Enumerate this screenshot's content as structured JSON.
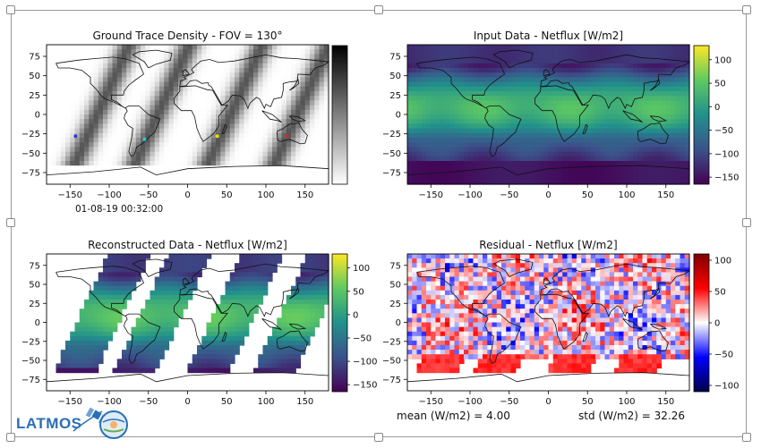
{
  "timestamp": "01-08-19 00:32:00",
  "logos": {
    "latmos": "LATMOS"
  },
  "footer": {
    "mean_label": "mean (W/m2) = 4.00",
    "std_label": "std (W/m2) = 32.26"
  },
  "chart_data": [
    {
      "type": "heatmap",
      "title": "Ground Trace Density - FOV = 130°",
      "x_ticks": [
        -150,
        -100,
        -50,
        0,
        50,
        100,
        150
      ],
      "y_ticks": [
        75,
        50,
        25,
        0,
        -25,
        -50,
        -75
      ],
      "xlim": [
        -180,
        180
      ],
      "ylim": [
        -90,
        90
      ],
      "colormap": "gray_r",
      "colorbar_ticks": [],
      "swath_centers_lon_at_equator": [
        -115,
        -38,
        55,
        140
      ],
      "markers": [
        {
          "lon": -143,
          "lat": -28,
          "color": "#1f3fd0"
        },
        {
          "lon": -55,
          "lat": -32,
          "color": "#2ec4d8"
        },
        {
          "lon": 38,
          "lat": -28,
          "color": "#e8e000"
        },
        {
          "lon": 127,
          "lat": -28,
          "color": "#d02a2a"
        }
      ]
    },
    {
      "type": "heatmap",
      "title": "Input Data - Netflux [W/m2]",
      "x_ticks": [
        -150,
        -100,
        -50,
        0,
        50,
        100,
        150
      ],
      "y_ticks": [
        75,
        50,
        25,
        0,
        -25,
        -50,
        -75
      ],
      "xlim": [
        -180,
        180
      ],
      "ylim": [
        -90,
        90
      ],
      "colormap": "viridis",
      "colorbar_ticks": [
        100,
        50,
        0,
        -50,
        -100,
        -150
      ],
      "colorbar_range": [
        -165,
        130
      ]
    },
    {
      "type": "heatmap",
      "title": "Reconstructed Data - Netflux [W/m2]",
      "x_ticks": [
        -150,
        -100,
        -50,
        0,
        50,
        100,
        150
      ],
      "y_ticks": [
        75,
        50,
        25,
        0,
        -25,
        -50,
        -75
      ],
      "xlim": [
        -180,
        180
      ],
      "ylim": [
        -90,
        90
      ],
      "colormap": "viridis",
      "colorbar_ticks": [
        100,
        50,
        0,
        -50,
        -100,
        -150
      ],
      "colorbar_range": [
        -165,
        130
      ]
    },
    {
      "type": "heatmap",
      "title": "Residual - Netflux [W/m2]",
      "x_ticks": [
        -150,
        -100,
        -50,
        0,
        50,
        100,
        150
      ],
      "y_ticks": [
        75,
        50,
        25,
        0,
        -25,
        -50,
        -75
      ],
      "xlim": [
        -180,
        180
      ],
      "ylim": [
        -90,
        90
      ],
      "colormap": "seismic",
      "colorbar_ticks": [
        100,
        50,
        0,
        -50,
        -100
      ],
      "colorbar_range": [
        -110,
        110
      ]
    }
  ]
}
